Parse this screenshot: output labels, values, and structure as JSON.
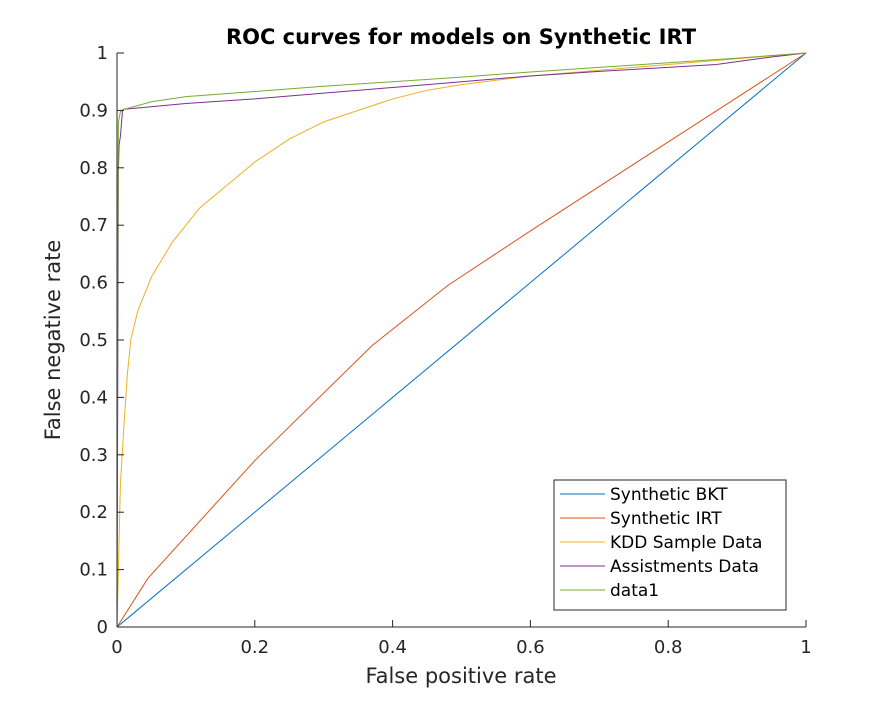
{
  "chart_data": {
    "type": "line",
    "title": "ROC curves for models on Synthetic IRT",
    "xlabel": "False positive rate",
    "ylabel": "False negative rate",
    "xlim": [
      0,
      1
    ],
    "ylim": [
      0,
      1
    ],
    "xticks": [
      "0",
      "0.2",
      "0.4",
      "0.6",
      "0.8",
      "1"
    ],
    "yticks": [
      "0",
      "0.1",
      "0.2",
      "0.3",
      "0.4",
      "0.5",
      "0.6",
      "0.7",
      "0.8",
      "0.9",
      "1"
    ],
    "grid": false,
    "legend_position": "bottom-right",
    "series": [
      {
        "name": "Synthetic BKT",
        "color": "#0072bd",
        "x": [
          0,
          1
        ],
        "y": [
          0,
          1
        ]
      },
      {
        "name": "Synthetic IRT",
        "color": "#d95319",
        "x": [
          0,
          0.045,
          0.2,
          0.37,
          0.48,
          0.6,
          0.8,
          1
        ],
        "y": [
          0,
          0.085,
          0.29,
          0.49,
          0.595,
          0.69,
          0.845,
          1
        ]
      },
      {
        "name": "KDD Sample Data",
        "color": "#edb120",
        "x": [
          0,
          0.002,
          0.005,
          0.01,
          0.015,
          0.02,
          0.03,
          0.04,
          0.05,
          0.06,
          0.08,
          0.1,
          0.12,
          0.15,
          0.18,
          0.2,
          0.25,
          0.3,
          0.35,
          0.4,
          0.45,
          0.5,
          0.6,
          0.7,
          0.8,
          0.9,
          1
        ],
        "y": [
          0,
          0.1,
          0.25,
          0.35,
          0.44,
          0.5,
          0.55,
          0.58,
          0.61,
          0.63,
          0.67,
          0.7,
          0.73,
          0.76,
          0.79,
          0.81,
          0.85,
          0.88,
          0.9,
          0.92,
          0.935,
          0.945,
          0.96,
          0.97,
          0.98,
          0.99,
          1
        ]
      },
      {
        "name": "Assistments Data",
        "color": "#7e2f8e",
        "x": [
          0,
          0.002,
          0.003,
          0.005,
          0.008,
          0.01,
          0.1,
          0.2,
          0.3,
          0.4,
          0.5,
          0.6,
          0.7,
          0.8,
          0.87,
          0.9,
          0.95,
          1
        ],
        "y": [
          0,
          0.79,
          0.84,
          0.855,
          0.9,
          0.902,
          0.912,
          0.92,
          0.93,
          0.94,
          0.95,
          0.96,
          0.968,
          0.975,
          0.98,
          0.985,
          0.993,
          1
        ]
      },
      {
        "name": "data1",
        "color": "#77ac30",
        "x": [
          0,
          0.001,
          0.002,
          0.005,
          0.01,
          0.02,
          0.05,
          0.1,
          0.2,
          0.3,
          0.4,
          0.5,
          0.6,
          0.7,
          0.8,
          0.9,
          1
        ],
        "y": [
          0,
          0.6,
          0.88,
          0.898,
          0.902,
          0.905,
          0.915,
          0.924,
          0.933,
          0.942,
          0.95,
          0.958,
          0.967,
          0.975,
          0.983,
          0.991,
          1
        ]
      }
    ]
  }
}
